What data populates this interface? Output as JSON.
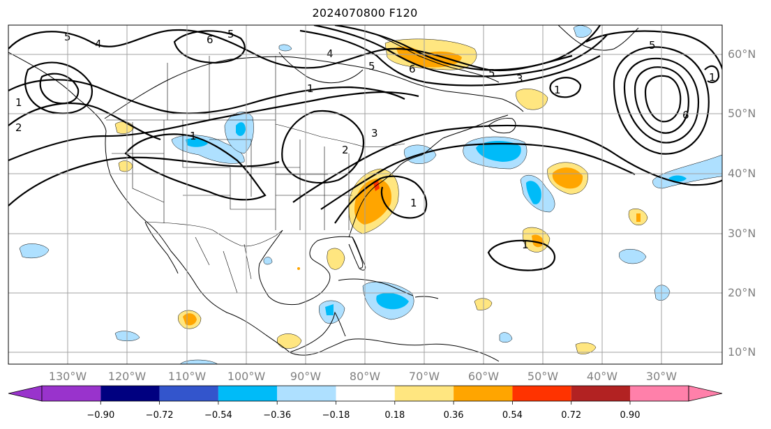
{
  "title": "2024070800 F120",
  "map": {
    "lon_labels": [
      "130°W",
      "120°W",
      "110°W",
      "100°W",
      "90°W",
      "80°W",
      "70°W",
      "60°W",
      "50°W",
      "40°W",
      "30°W"
    ],
    "lat_labels": [
      "10°N",
      "20°N",
      "30°N",
      "40°N",
      "50°N",
      "60°N"
    ],
    "contour_labels": [
      "5",
      "4",
      "6",
      "5",
      "1",
      "2",
      "1",
      "3",
      "2",
      "5",
      "1",
      "4",
      "6",
      "5",
      "3",
      "1",
      "5",
      "1",
      "6",
      "1",
      "1"
    ],
    "gridline_color": "#a0a0a0",
    "coast_color": "#000000"
  },
  "colorbar": {
    "tick_labels": [
      "−0.90",
      "−0.72",
      "−0.54",
      "−0.36",
      "−0.18",
      "0.18",
      "0.36",
      "0.54",
      "0.72",
      "0.90"
    ],
    "colors": [
      "#9933cc",
      "#000080",
      "#3355cc",
      "#00bbf8",
      "#aee0ff",
      "#ffffff",
      "#ffe680",
      "#ffa500",
      "#ff3300",
      "#b22222",
      "#ff80aa"
    ],
    "extend": "both"
  }
}
